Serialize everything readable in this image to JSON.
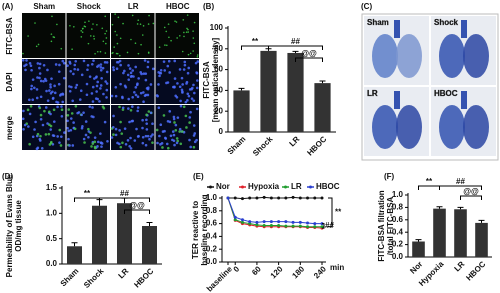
{
  "panels": {
    "a": {
      "panel_label": "(A)",
      "columns": [
        "Sham",
        "Shock",
        "LR",
        "HBOC"
      ],
      "rows": [
        "FITC-BSA",
        "DAPI",
        "merge"
      ]
    },
    "c": {
      "panel_label": "(C)",
      "images": [
        "Sham",
        "Shock",
        "LR",
        "HBOC"
      ]
    }
  },
  "chart_data": [
    {
      "type": "bar",
      "panel_label": "(B)",
      "y_label": [
        "FITC-BSA",
        "[mean optical density]"
      ],
      "categories": [
        "Sham",
        "Shock",
        "LR",
        "HBOC"
      ],
      "values": [
        40,
        78,
        76,
        47
      ],
      "errors": [
        2,
        2,
        1.5,
        2
      ],
      "color": "#333333",
      "ylim": [
        0,
        100
      ],
      "yticks": [
        0,
        20,
        40,
        60,
        80,
        100
      ],
      "annotations": [
        "**",
        "##",
        "@@"
      ]
    },
    {
      "type": "bar",
      "panel_label": "(D)",
      "y_label": [
        "Permeability of Evans Blue",
        "OD/mg tissue"
      ],
      "categories": [
        "Sham",
        "Shock",
        "LR",
        "HBOC"
      ],
      "values": [
        0.35,
        1.15,
        1.2,
        0.75
      ],
      "errors": [
        0.07,
        0.12,
        0.1,
        0.07
      ],
      "color": "#333333",
      "ylim": [
        0,
        1.5
      ],
      "yticks": [
        {
          "value": 0,
          "label": "0.0"
        },
        {
          "value": 0.5,
          "label": "0.5"
        },
        {
          "value": 1,
          "label": "1.0"
        },
        {
          "value": 1.5,
          "label": "1.5"
        }
      ],
      "annotations": [
        "**",
        "##",
        "@@"
      ]
    },
    {
      "type": "line",
      "panel_label": "(E)",
      "y_label": [
        "TER reactive to",
        "baseline recording"
      ],
      "x_unit": "min",
      "categories": [
        "baseline",
        "0",
        null,
        null,
        "60",
        null,
        null,
        "120",
        null,
        null,
        "180",
        null,
        null,
        "240"
      ],
      "series": [
        {
          "name": "Nor",
          "color": "#111111",
          "values": [
            1.0,
            1.0,
            0.99,
            1.0,
            1.0,
            1.01,
            1.0,
            1.0,
            1.0,
            1.01,
            1.0,
            1.0,
            1.0,
            1.0
          ]
        },
        {
          "name": "Hypoxia",
          "color": "#e0202a",
          "values": [
            1.0,
            0.65,
            0.6,
            0.58,
            0.56,
            0.55,
            0.55,
            0.55,
            0.55,
            0.55,
            0.55,
            0.54,
            0.54,
            0.53
          ]
        },
        {
          "name": "LR",
          "color": "#1f9d2e",
          "values": [
            1.0,
            0.66,
            0.62,
            0.6,
            0.58,
            0.57,
            0.57,
            0.57,
            0.56,
            0.56,
            0.56,
            0.55,
            0.55,
            0.55
          ]
        },
        {
          "name": "HBOC",
          "color": "#2a3fd0",
          "values": [
            1.0,
            0.7,
            0.66,
            0.63,
            0.62,
            0.63,
            0.63,
            0.63,
            0.63,
            0.62,
            0.62,
            0.61,
            0.6,
            0.6
          ]
        }
      ],
      "ylim": [
        0,
        1.0
      ],
      "yticks": [
        {
          "value": 0,
          "label": "0.0"
        },
        {
          "value": 0.2,
          "label": "0.2"
        },
        {
          "value": 0.4,
          "label": "0.4"
        },
        {
          "value": 0.6,
          "label": "0.6"
        },
        {
          "value": 0.8,
          "label": "0.8"
        },
        {
          "value": 1,
          "label": "1.0"
        }
      ],
      "annotations": [
        "**",
        "##"
      ]
    },
    {
      "type": "bar",
      "panel_label": "(F)",
      "y_label": [
        "FITC-BSA filtration",
        "/total FITC-BSA"
      ],
      "categories": [
        "Nor",
        "Hypoxia",
        "LR",
        "HBOC"
      ],
      "values": [
        0.25,
        0.78,
        0.77,
        0.55
      ],
      "errors": [
        0.03,
        0.03,
        0.03,
        0.04
      ],
      "color": "#333333",
      "ylim": [
        0,
        1.0
      ],
      "yticks": [
        {
          "value": 0,
          "label": "0.0"
        },
        {
          "value": 0.2,
          "label": "0.2"
        },
        {
          "value": 0.4,
          "label": "0.4"
        },
        {
          "value": 0.6,
          "label": "0.6"
        },
        {
          "value": 0.8,
          "label": "0.8"
        },
        {
          "value": 1,
          "label": "1.0"
        }
      ],
      "annotations": [
        "**",
        "##",
        "@@"
      ]
    }
  ]
}
